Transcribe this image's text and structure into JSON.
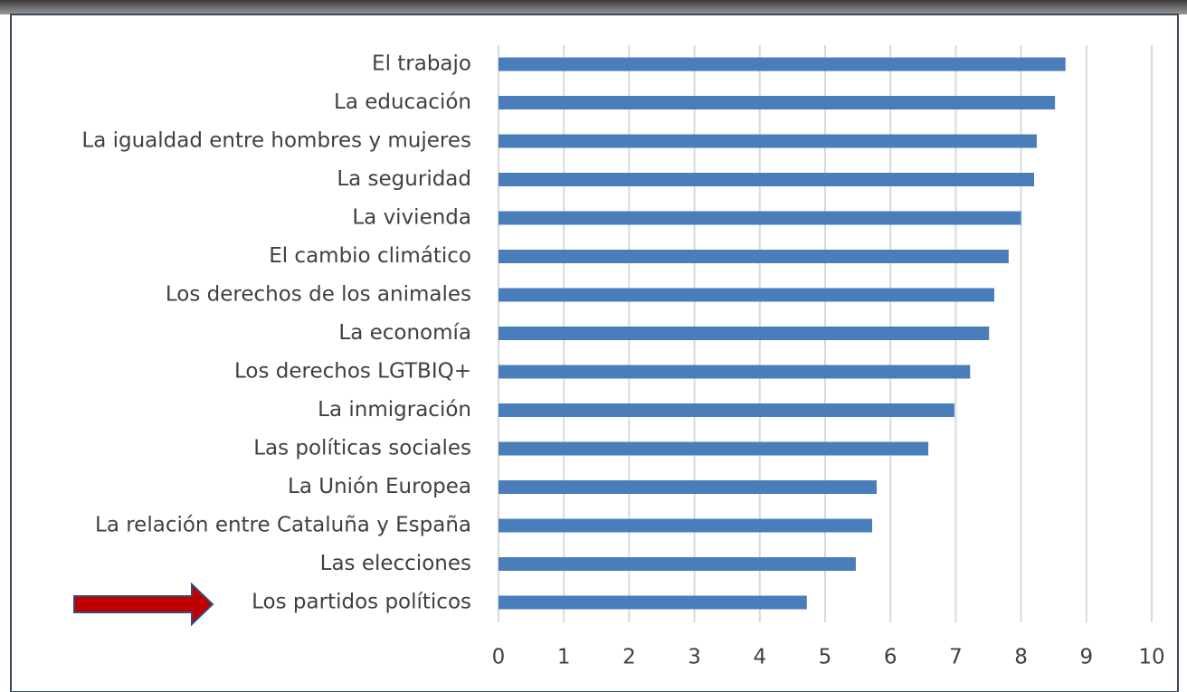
{
  "chart_data": {
    "type": "barh",
    "categories": [
      "El trabajo",
      "La educación",
      "La igualdad entre hombres y mujeres",
      "La seguridad",
      "La vivienda",
      "El cambio climático",
      "Los derechos de los animales",
      "La economía",
      "Los derechos LGTBIQ+",
      "La inmigración",
      "Las políticas sociales",
      "La Unión Europea",
      "La relación entre Cataluña y España",
      "Las elecciones",
      "Los partidos políticos"
    ],
    "values": [
      8.68,
      8.52,
      8.24,
      8.2,
      8.0,
      7.81,
      7.59,
      7.51,
      7.22,
      6.98,
      6.58,
      5.79,
      5.72,
      5.47,
      4.72
    ],
    "color": "#4a7ebb",
    "xlim": [
      0,
      10
    ],
    "xticks": [
      0,
      1,
      2,
      3,
      4,
      5,
      6,
      7,
      8,
      9,
      10
    ],
    "grid": true
  }
}
